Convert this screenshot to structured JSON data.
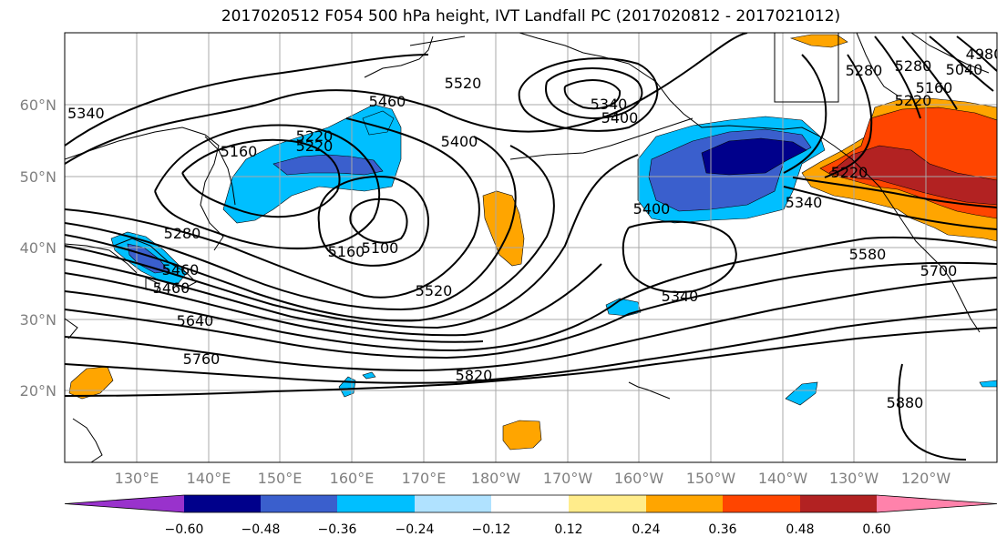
{
  "title": "2017020512 F054 500 hPa height, IVT Landfall PC (2017020812 - 2017021012)",
  "lat_labels": [
    "60°N",
    "50°N",
    "40°N",
    "30°N",
    "20°N"
  ],
  "lon_labels": [
    "130°E",
    "140°E",
    "150°E",
    "160°E",
    "170°E",
    "180°W",
    "170°W",
    "160°W",
    "150°W",
    "140°W",
    "130°W",
    "120°W"
  ],
  "colorbar": {
    "colors": [
      "#9932cc",
      "#00008b",
      "#3a5fcd",
      "#00bfff",
      "#b0e2ff",
      "#ffffff",
      "#ffec8b",
      "#ffa500",
      "#ff4500",
      "#b22222",
      "#ff82ab"
    ],
    "tick_labels": [
      "−0.60",
      "−0.48",
      "−0.36",
      "−0.24",
      "−0.12",
      "0.12",
      "0.24",
      "0.36",
      "0.48",
      "0.60"
    ]
  },
  "contour_labels": [
    "5340",
    "5460",
    "5160",
    "5220",
    "5520",
    "5340",
    "5400",
    "5280",
    "5220",
    "5280",
    "5040",
    "4980",
    "5160",
    "5220",
    "5160",
    "5100",
    "5400",
    "5460",
    "5220",
    "5340",
    "5280",
    "5460",
    "5400",
    "5520",
    "5340",
    "5580",
    "5700",
    "5640",
    "5760",
    "5820",
    "5880"
  ]
}
